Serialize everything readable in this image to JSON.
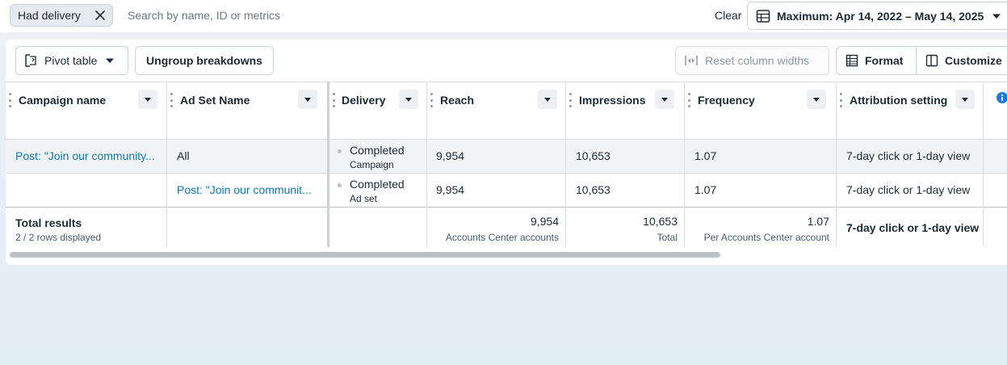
{
  "filter": {
    "chip_label": "Had delivery",
    "search_placeholder": "Search by name, ID or metrics",
    "clear_label": "Clear",
    "date_range_label": "Maximum: Apr 14, 2022 – May 14, 2025"
  },
  "toolbar": {
    "pivot_table": "Pivot table",
    "ungroup": "Ungroup breakdowns",
    "reset_widths": "Reset column widths",
    "format": "Format",
    "customize": "Customize"
  },
  "columns": {
    "campaign_name": "Campaign name",
    "ad_set_name": "Ad Set Name",
    "delivery": "Delivery",
    "reach": "Reach",
    "impressions": "Impressions",
    "frequency": "Frequency",
    "attribution": "Attribution setting"
  },
  "rows": [
    {
      "campaign": "Post: \"Join our community...",
      "ad_set": "All",
      "delivery_status": "Completed",
      "delivery_level": "Campaign",
      "reach": "9,954",
      "impressions": "10,653",
      "frequency": "1.07",
      "attribution": "7-day click or 1-day view"
    },
    {
      "campaign": "",
      "ad_set": "Post: \"Join our communit...",
      "delivery_status": "Completed",
      "delivery_level": "Ad set",
      "reach": "9,954",
      "impressions": "10,653",
      "frequency": "1.07",
      "attribution": "7-day click or 1-day view"
    }
  ],
  "totals": {
    "label": "Total results",
    "rows_displayed": "2 / 2 rows displayed",
    "reach": "9,954",
    "reach_sub": "Accounts Center accounts",
    "impressions": "10,653",
    "impressions_sub": "Total",
    "frequency": "1.07",
    "frequency_sub": "Per Accounts Center account",
    "attribution": "7-day click or 1-day view"
  },
  "colors": {
    "link": "#0a78be",
    "border": "#cbd2d9",
    "row_highlight": "#f2f3f5",
    "info_icon": "#1877f2"
  }
}
